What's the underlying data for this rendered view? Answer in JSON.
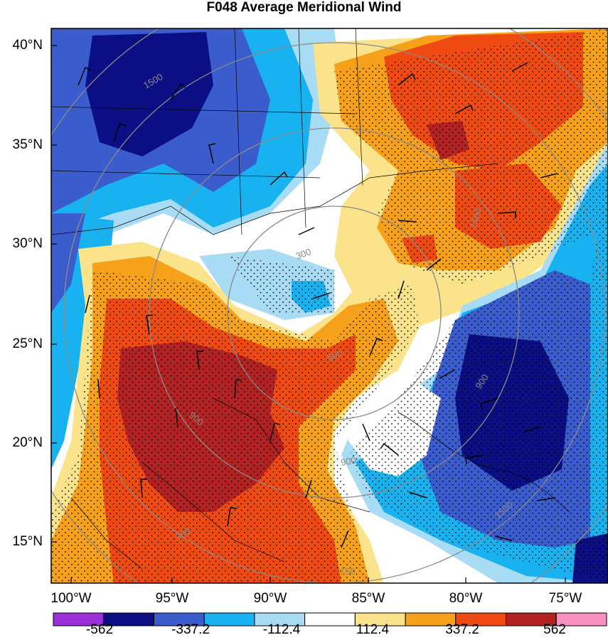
{
  "title": "F048 Average Meridional Wind",
  "lat_labels": [
    "40°N",
    "35°N",
    "30°N",
    "25°N",
    "20°N",
    "15°N"
  ],
  "lon_labels": [
    "100°W",
    "95°W",
    "90°W",
    "85°W",
    "80°W",
    "75°W"
  ],
  "colorbar": {
    "labels": [
      "-562",
      "-337.2",
      "-112.4",
      "112.4",
      "337.2",
      "562"
    ],
    "colors": [
      "#9b30d9",
      "#0c0e84",
      "#3b5ccc",
      "#17b2ef",
      "#a8dcf5",
      "#ffffff",
      "#fae38a",
      "#f7a11a",
      "#ef4a12",
      "#b22222",
      "#f78fbf"
    ]
  },
  "contour_labels": [
    "1500",
    "300",
    "600",
    "900",
    "900",
    "900",
    "1500",
    "1500",
    "900",
    "150"
  ],
  "colors": {
    "deep_blue": "#0c0e84",
    "blue": "#3b5ccc",
    "cyan": "#17b2ef",
    "light_blue": "#a8dcf5",
    "yellow": "#fae38a",
    "orange": "#f7a11a",
    "red_orange": "#ef4a12",
    "dark_red": "#b22222"
  }
}
